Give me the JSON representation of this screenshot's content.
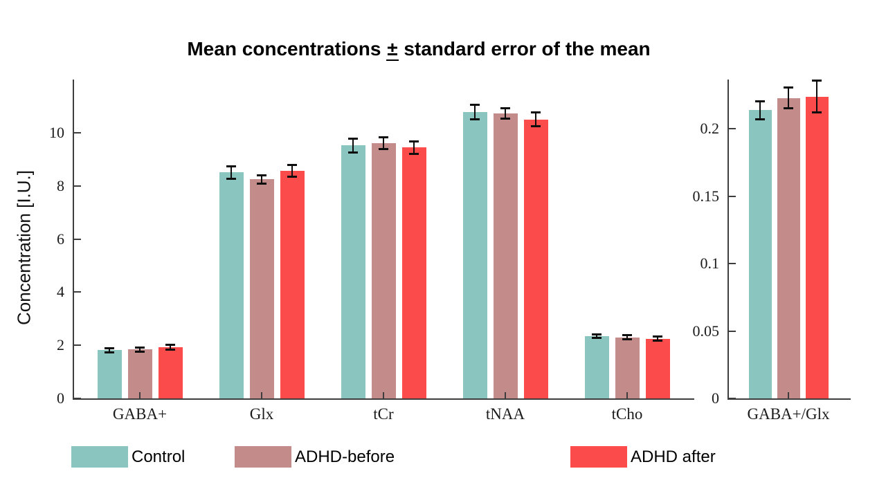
{
  "title": {
    "pre": "Mean concentrations ",
    "pm": "±",
    "post": " standard error of the mean"
  },
  "legend": [
    {
      "label": "Control",
      "color": "#8BC5C0"
    },
    {
      "label": "ADHD-before",
      "color": "#C48B8B"
    },
    {
      "label": "ADHD after",
      "color": "#FC4B4B"
    }
  ],
  "chart_data": [
    {
      "type": "bar",
      "title": "Mean concentrations ± standard error of the mean",
      "ylabel": "Concentration [I.U.]",
      "xlabel": "",
      "categories": [
        "GABA+",
        "Glx",
        "tCr",
        "tNAA",
        "tCho"
      ],
      "ylim": [
        0,
        12
      ],
      "yticks": [
        0,
        2,
        4,
        6,
        8,
        10
      ],
      "ytick_labels": [
        "0",
        "2",
        "4",
        "6",
        "8",
        "10"
      ],
      "grid": false,
      "legend_position": "below",
      "error_bars": "standard error of the mean",
      "series": [
        {
          "name": "Control",
          "values": [
            1.81,
            8.5,
            9.52,
            10.78,
            2.35
          ],
          "errors": [
            0.08,
            0.25,
            0.28,
            0.28,
            0.08
          ]
        },
        {
          "name": "ADHD-before",
          "values": [
            1.84,
            8.25,
            9.6,
            10.72,
            2.3
          ],
          "errors": [
            0.09,
            0.17,
            0.24,
            0.2,
            0.09
          ]
        },
        {
          "name": "ADHD after",
          "values": [
            1.92,
            8.56,
            9.44,
            10.5,
            2.25
          ],
          "errors": [
            0.1,
            0.24,
            0.25,
            0.27,
            0.08
          ]
        }
      ]
    },
    {
      "type": "bar",
      "title": "",
      "ylabel": "",
      "xlabel": "",
      "categories": [
        "GABA+/Glx"
      ],
      "ylim": [
        0,
        0.2367
      ],
      "yticks": [
        0,
        0.05,
        0.1,
        0.15,
        0.2
      ],
      "ytick_labels": [
        "0",
        "0.05",
        "0.1",
        "0.15",
        "0.2"
      ],
      "grid": false,
      "error_bars": "standard error of the mean",
      "series": [
        {
          "name": "Control",
          "values": [
            0.214
          ],
          "errors": [
            0.007
          ]
        },
        {
          "name": "ADHD-before",
          "values": [
            0.223
          ],
          "errors": [
            0.008
          ]
        },
        {
          "name": "ADHD after",
          "values": [
            0.224
          ],
          "errors": [
            0.012
          ]
        }
      ]
    }
  ]
}
